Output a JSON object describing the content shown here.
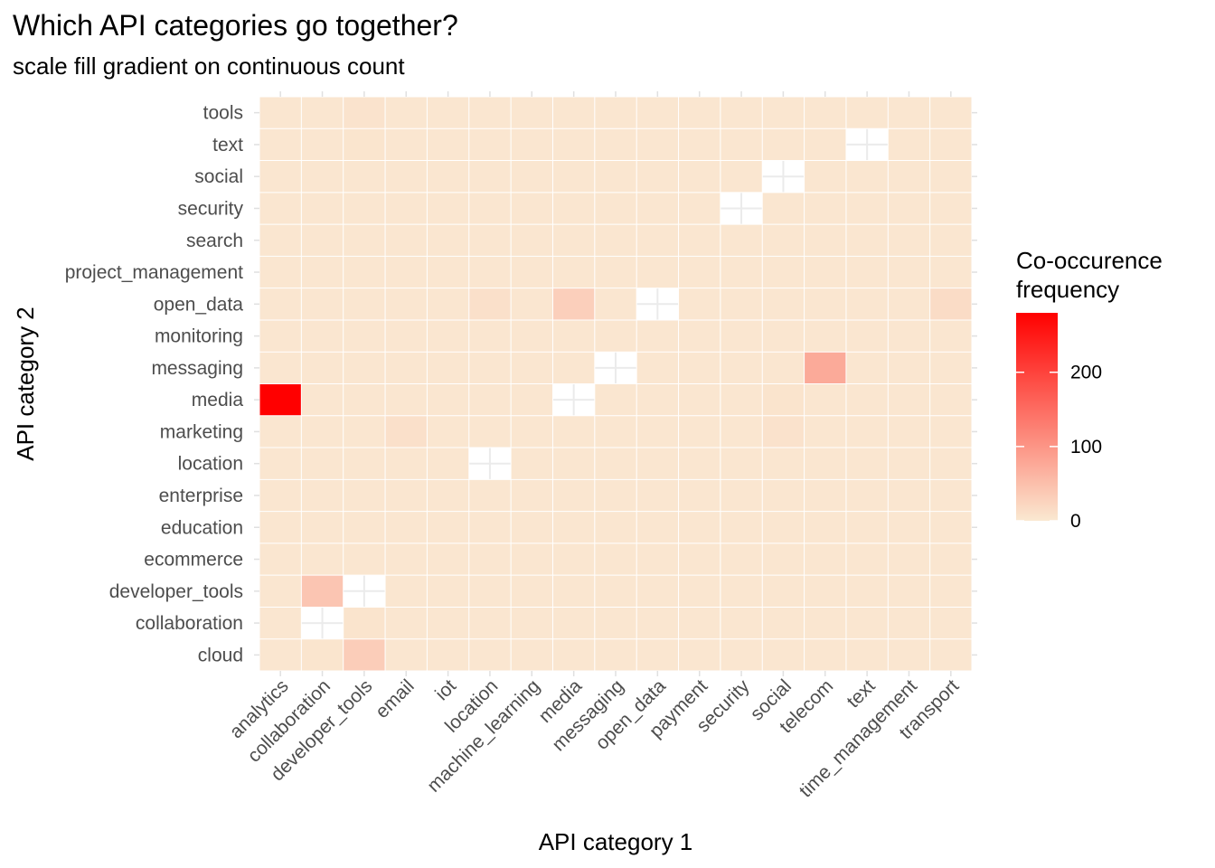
{
  "chart_data": {
    "type": "heatmap",
    "title": "Which API categories go together?",
    "subtitle": "scale fill gradient on continuous count",
    "xlabel": "API category 1",
    "ylabel": "API category 2",
    "x_categories": [
      "analytics",
      "collaboration",
      "developer_tools",
      "email",
      "iot",
      "location",
      "machine_learning",
      "media",
      "messaging",
      "open_data",
      "payment",
      "security",
      "social",
      "telecom",
      "text",
      "time_management",
      "transport"
    ],
    "y_categories": [
      "cloud",
      "collaboration",
      "developer_tools",
      "ecommerce",
      "education",
      "enterprise",
      "location",
      "marketing",
      "media",
      "messaging",
      "monitoring",
      "open_data",
      "project_management",
      "search",
      "security",
      "social",
      "text",
      "tools"
    ],
    "legend": {
      "title_lines": [
        "Co-occurence",
        "frequency"
      ],
      "breaks": [
        0,
        100,
        200
      ],
      "labels": [
        "0",
        "100",
        "200"
      ],
      "range": [
        0,
        280
      ],
      "placement": "right"
    },
    "colors": {
      "low": "#fae8d1",
      "high": "#ff0000",
      "missing": "#ffffff",
      "grid": "#ffffff"
    },
    "grid": true,
    "default_value": 2,
    "cells": [
      {
        "x": "analytics",
        "y": "media",
        "value": 280
      },
      {
        "x": "collaboration",
        "y": "developer_tools",
        "value": 42
      },
      {
        "x": "developer_tools",
        "y": "cloud",
        "value": 32
      },
      {
        "x": "telecom",
        "y": "messaging",
        "value": 75
      },
      {
        "x": "media",
        "y": "open_data",
        "value": 30
      },
      {
        "x": "transport",
        "y": "open_data",
        "value": 15
      },
      {
        "x": "location",
        "y": "open_data",
        "value": 10
      },
      {
        "x": "email",
        "y": "marketing",
        "value": 10
      },
      {
        "x": "social",
        "y": "marketing",
        "value": 7
      },
      {
        "x": "developer_tools",
        "y": "tools",
        "value": 6
      },
      {
        "x": "developer_tools",
        "y": "collaboration",
        "value": 5
      },
      {
        "x": "developer_tools",
        "y": "text",
        "value": 4
      },
      {
        "x": "collaboration",
        "y": "cloud",
        "value": 4
      },
      {
        "x": "social",
        "y": "media",
        "value": 5
      }
    ],
    "missing": [
      {
        "x": "collaboration",
        "y": "collaboration"
      },
      {
        "x": "developer_tools",
        "y": "developer_tools"
      },
      {
        "x": "location",
        "y": "location"
      },
      {
        "x": "media",
        "y": "media"
      },
      {
        "x": "messaging",
        "y": "messaging"
      },
      {
        "x": "open_data",
        "y": "open_data"
      },
      {
        "x": "security",
        "y": "security"
      },
      {
        "x": "social",
        "y": "social"
      },
      {
        "x": "text",
        "y": "text"
      }
    ]
  }
}
